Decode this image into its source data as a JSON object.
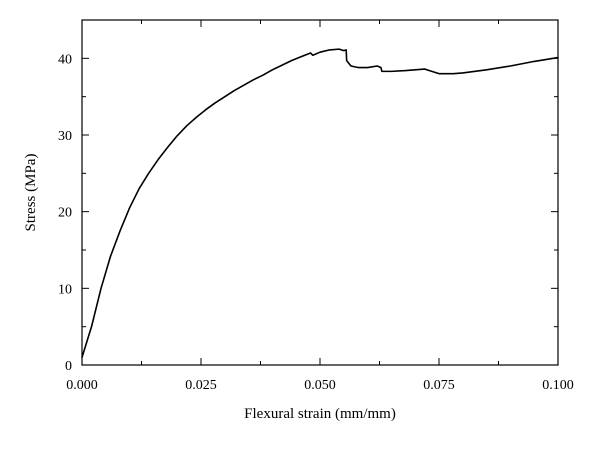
{
  "chart_data": {
    "type": "line",
    "xlabel": "Flexural strain (mm/mm)",
    "ylabel": "Stress (MPa)",
    "xlim": [
      0.0,
      0.1
    ],
    "ylim": [
      0,
      45
    ],
    "x_ticks": [
      0.0,
      0.025,
      0.05,
      0.075,
      0.1
    ],
    "x_tick_labels": [
      "0.000",
      "0.025",
      "0.050",
      "0.075",
      "0.100"
    ],
    "y_ticks": [
      0,
      10,
      20,
      30,
      40
    ],
    "y_tick_labels": [
      "0",
      "10",
      "20",
      "30",
      "40"
    ],
    "grid": false,
    "legend": "none",
    "series": [
      {
        "color": "#000000",
        "x": [
          0.0,
          0.002,
          0.004,
          0.006,
          0.008,
          0.01,
          0.012,
          0.014,
          0.016,
          0.018,
          0.02,
          0.022,
          0.024,
          0.026,
          0.028,
          0.03,
          0.032,
          0.034,
          0.036,
          0.038,
          0.04,
          0.042,
          0.044,
          0.046,
          0.048,
          0.0485,
          0.05,
          0.052,
          0.054,
          0.055,
          0.0555,
          0.0556,
          0.0565,
          0.058,
          0.06,
          0.062,
          0.0628,
          0.063,
          0.065,
          0.068,
          0.07,
          0.072,
          0.073,
          0.075,
          0.078,
          0.08,
          0.085,
          0.09,
          0.095,
          0.1
        ],
        "y": [
          1.0,
          5.0,
          10.0,
          14.2,
          17.5,
          20.5,
          23.0,
          25.0,
          26.8,
          28.4,
          29.9,
          31.2,
          32.3,
          33.3,
          34.2,
          35.0,
          35.8,
          36.5,
          37.2,
          37.8,
          38.5,
          39.1,
          39.7,
          40.2,
          40.7,
          40.4,
          40.8,
          41.1,
          41.2,
          41.0,
          41.1,
          39.7,
          39.0,
          38.8,
          38.8,
          39.0,
          38.8,
          38.3,
          38.3,
          38.4,
          38.5,
          38.6,
          38.4,
          38.0,
          38.0,
          38.1,
          38.5,
          39.0,
          39.6,
          40.1
        ]
      }
    ]
  }
}
